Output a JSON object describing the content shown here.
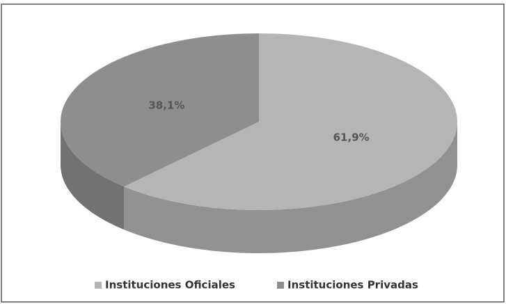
{
  "chart_data": {
    "type": "pie",
    "categories": [
      "Instituciones Oficiales",
      "Instituciones Privadas"
    ],
    "values": [
      61.9,
      38.1
    ],
    "value_labels": [
      "61,9%",
      "38,1%"
    ],
    "colors": [
      "#b5b5b5",
      "#8e8e8e"
    ],
    "legend": "bottom"
  }
}
